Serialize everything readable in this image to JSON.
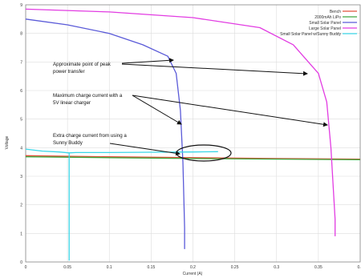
{
  "chart_data": {
    "type": "line",
    "title": "",
    "xlabel": "Current (A)",
    "ylabel": "Voltage",
    "xlim": [
      0,
      0.4
    ],
    "ylim": [
      0,
      9
    ],
    "x_ticks": [
      "0",
      "0.05",
      "0.1",
      "0.15",
      "0.2",
      "0.25",
      "0.3",
      "0.35",
      "0.4"
    ],
    "y_ticks": [
      "0",
      "1",
      "2",
      "3",
      "4",
      "5",
      "6",
      "7",
      "8",
      "9"
    ],
    "grid": true,
    "legend_position": "top-right",
    "series": [
      {
        "name": "Bench",
        "color": "#e0503a",
        "x": [
          0,
          0.1,
          0.2,
          0.3,
          0.4
        ],
        "y": [
          3.72,
          3.68,
          3.65,
          3.62,
          3.6
        ]
      },
      {
        "name": "2000mAh LiPo",
        "color": "#3fa83f",
        "x": [
          0,
          0.1,
          0.2,
          0.3,
          0.4
        ],
        "y": [
          3.68,
          3.65,
          3.62,
          3.6,
          3.58
        ]
      },
      {
        "name": "Small Solar Panel",
        "color": "#5a5ad8",
        "x": [
          0,
          0.05,
          0.1,
          0.14,
          0.17,
          0.18,
          0.185,
          0.188,
          0.19,
          0.19
        ],
        "y": [
          8.5,
          8.3,
          8.0,
          7.6,
          7.2,
          6.6,
          5.3,
          3.5,
          1.2,
          0.45
        ]
      },
      {
        "name": "Large Solar Panel",
        "color": "#e23ce2",
        "x": [
          0,
          0.1,
          0.2,
          0.28,
          0.32,
          0.35,
          0.36,
          0.365,
          0.37,
          0.37
        ],
        "y": [
          8.85,
          8.75,
          8.55,
          8.2,
          7.6,
          6.6,
          5.6,
          4.0,
          1.5,
          0.9
        ]
      },
      {
        "name": "Small Solar Panel w/Sunny Buddy",
        "color": "#3ad6e8",
        "x": [
          0,
          0.02,
          0.04,
          0.052,
          0.06,
          0.1,
          0.15,
          0.2,
          0.23
        ],
        "y": [
          3.95,
          3.88,
          3.85,
          3.82,
          3.83,
          3.83,
          3.84,
          3.85,
          3.86
        ],
        "drop": {
          "x": 0.052,
          "y_from": 3.82,
          "y_to": 0.05
        }
      }
    ],
    "annotations": [
      {
        "text": [
          "Approximate point of peak",
          "power transfer"
        ]
      },
      {
        "text": [
          "Maximum charge current with a",
          "5V linear charger"
        ]
      },
      {
        "text": [
          "Extra charge current from using a",
          "Sunny Buddy"
        ]
      }
    ]
  }
}
